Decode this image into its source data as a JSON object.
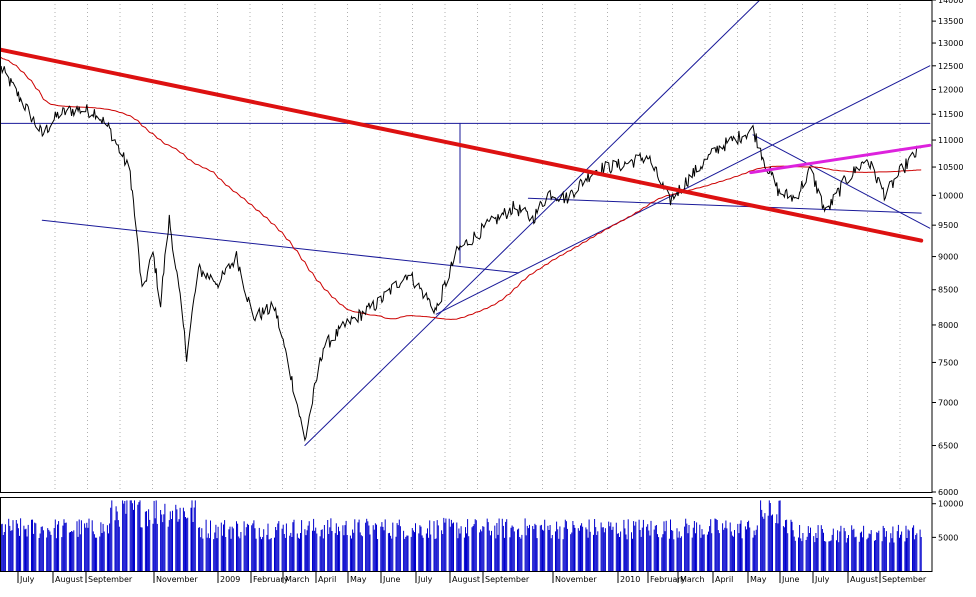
{
  "chart_data": [
    {
      "type": "line",
      "title": "",
      "xlabel": "",
      "ylabel": "",
      "scale": "log",
      "ylim": [
        6000,
        14000
      ],
      "grid": true,
      "y_ticks": [
        6000,
        6500,
        7000,
        7500,
        8000,
        8500,
        9000,
        9500,
        10000,
        10500,
        11000,
        11500,
        12000,
        12500,
        13000,
        13500,
        14000
      ],
      "x_tick_labels": [
        "July",
        "August",
        "September",
        "November",
        "2009",
        "February",
        "March",
        "April",
        "May",
        "June",
        "July",
        "August",
        "September",
        "November",
        "2010",
        "February",
        "March",
        "April",
        "May",
        "June",
        "July",
        "August",
        "September"
      ],
      "series": [
        {
          "style": "price",
          "color": "#000000",
          "key_points": [
            [
              "2008-06-02",
              12450
            ],
            [
              "2008-06-20",
              11800
            ],
            [
              "2008-07-10",
              11100
            ],
            [
              "2008-07-25",
              11500
            ],
            [
              "2008-08-10",
              11600
            ],
            [
              "2008-08-28",
              11550
            ],
            [
              "2008-09-10",
              11200
            ],
            [
              "2008-09-29",
              10400
            ],
            [
              "2008-10-10",
              8450
            ],
            [
              "2008-10-20",
              9050
            ],
            [
              "2008-10-27",
              8300
            ],
            [
              "2008-11-04",
              9600
            ],
            [
              "2008-11-20",
              7600
            ],
            [
              "2008-12-01",
              8800
            ],
            [
              "2008-12-20",
              8600
            ],
            [
              "2009-01-05",
              9000
            ],
            [
              "2009-01-20",
              8100
            ],
            [
              "2009-02-09",
              8250
            ],
            [
              "2009-03-09",
              6550
            ],
            [
              "2009-03-26",
              7700
            ],
            [
              "2009-04-20",
              8050
            ],
            [
              "2009-05-15",
              8300
            ],
            [
              "2009-06-12",
              8750
            ],
            [
              "2009-07-08",
              8200
            ],
            [
              "2009-07-28",
              9100
            ],
            [
              "2009-08-25",
              9500
            ],
            [
              "2009-09-18",
              9800
            ],
            [
              "2009-10-05",
              9600
            ],
            [
              "2009-10-20",
              10050
            ],
            [
              "2009-11-05",
              9950
            ],
            [
              "2009-12-01",
              10450
            ],
            [
              "2009-12-28",
              10550
            ],
            [
              "2010-01-19",
              10700
            ],
            [
              "2010-02-08",
              9900
            ],
            [
              "2010-02-26",
              10300
            ],
            [
              "2010-03-25",
              10850
            ],
            [
              "2010-04-26",
              11200
            ],
            [
              "2010-05-07",
              10600
            ],
            [
              "2010-05-20",
              10050
            ],
            [
              "2010-06-04",
              9950
            ],
            [
              "2010-06-18",
              10450
            ],
            [
              "2010-07-02",
              9700
            ],
            [
              "2010-07-20",
              10250
            ],
            [
              "2010-08-09",
              10650
            ],
            [
              "2010-08-26",
              10000
            ],
            [
              "2010-09-10",
              10450
            ],
            [
              "2010-09-28",
              10850
            ]
          ]
        },
        {
          "style": "moving-average",
          "color": "#cc0000"
        },
        {
          "style": "volume",
          "color": "#0000cc"
        }
      ],
      "trendlines": [
        {
          "color": "#dd1111",
          "width": 4,
          "from": [
            "2008-06-02",
            12850
          ],
          "to": [
            "2010-09-28",
            9250
          ]
        },
        {
          "color": "#dd22dd",
          "width": 3,
          "from": [
            "2010-04-24",
            10400
          ],
          "to": [
            "2010-10-06",
            10900
          ]
        },
        {
          "color": "#1a1a99",
          "width": 1,
          "from": [
            "2008-07-10",
            9580
          ],
          "to": [
            "2009-09-22",
            8750
          ]
        },
        {
          "color": "#1a1a99",
          "width": 1,
          "from": [
            "2009-03-09",
            6500
          ],
          "to": [
            "2010-05-10",
            14200
          ]
        },
        {
          "color": "#1a1a99",
          "width": 1,
          "from": [
            "2009-07-08",
            8150
          ],
          "to": [
            "2010-10-06",
            12500
          ]
        },
        {
          "color": "#1a1a99",
          "width": 1,
          "from": [
            "2009-10-01",
            9950
          ],
          "to": [
            "2010-09-28",
            9700
          ]
        },
        {
          "color": "#1a1a99",
          "width": 1,
          "from": [
            "2010-04-26",
            11100
          ],
          "to": [
            "2010-10-06",
            9450
          ]
        },
        {
          "color": "#1a1a99",
          "width": 1,
          "from": [
            "2008-06-02",
            11320
          ],
          "to": [
            "2010-10-06",
            11320
          ]
        },
        {
          "color": "#1a1a99",
          "width": 1,
          "from": [
            "2009-07-30",
            11320
          ],
          "to": [
            "2009-07-30",
            8900
          ]
        }
      ]
    },
    {
      "type": "bar",
      "title": "",
      "xlabel": "",
      "ylabel": "",
      "ylim": [
        0,
        11000
      ],
      "y_ticks": [
        5000,
        10000
      ],
      "color": "#0000cc",
      "values_range": [
        1500,
        10500
      ]
    }
  ]
}
